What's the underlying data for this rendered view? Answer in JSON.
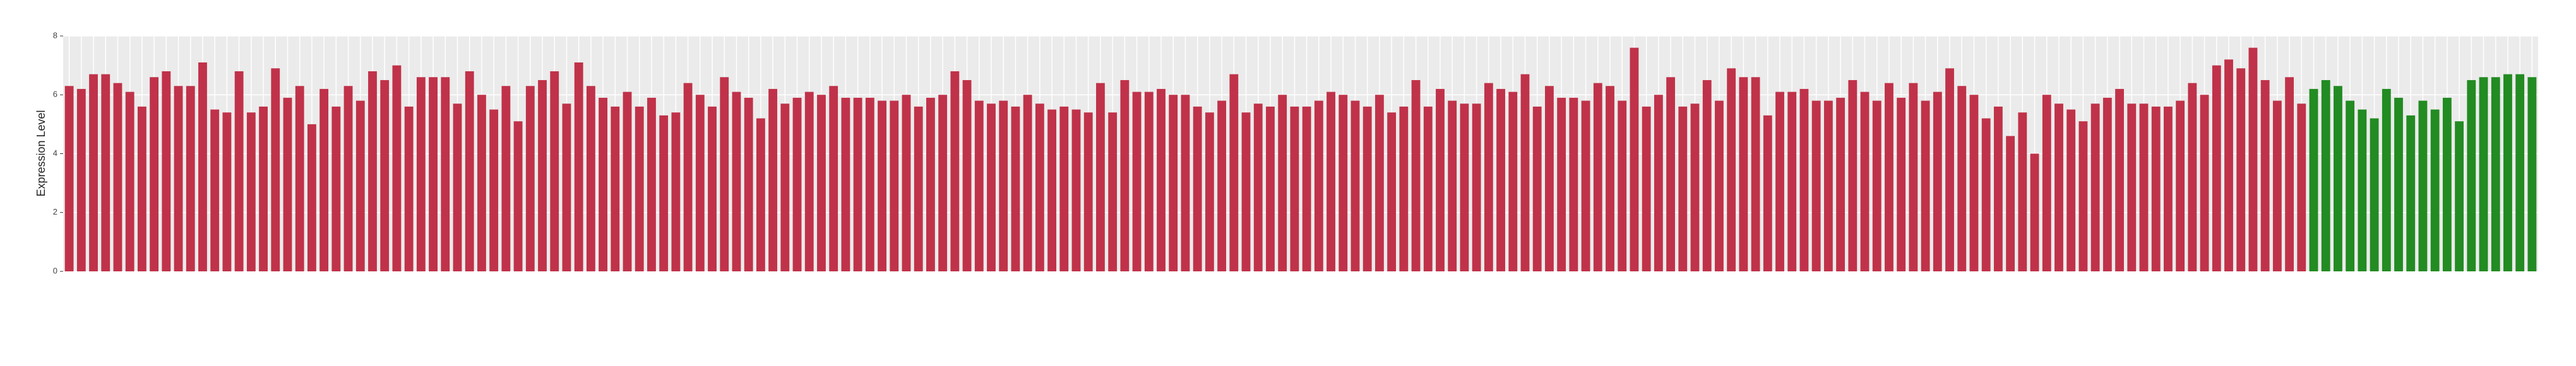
{
  "chart_data": {
    "type": "bar",
    "y_label": "Expression Level",
    "categories": [
      null,
      null,
      null,
      null,
      null,
      null,
      null,
      null,
      null,
      null,
      null,
      null,
      null,
      null,
      null,
      null,
      null,
      null,
      null,
      null,
      null,
      null,
      null,
      null,
      null,
      null,
      null,
      null,
      null,
      null,
      null,
      null,
      null,
      null,
      null,
      null,
      null,
      null,
      null,
      null,
      null,
      null,
      null,
      null,
      null,
      null,
      null,
      null,
      null,
      null,
      null,
      null,
      null,
      null,
      null,
      null,
      null,
      null,
      null,
      null,
      null,
      null,
      null,
      null,
      null,
      null,
      null,
      null,
      null,
      null,
      null,
      null,
      null,
      null,
      null,
      null,
      null,
      null,
      null,
      null,
      null,
      null,
      null,
      null,
      null,
      null,
      null,
      null,
      null,
      null,
      null,
      null,
      null,
      null,
      null,
      null,
      null,
      null,
      null,
      null,
      null,
      null,
      null,
      null,
      null,
      null,
      null,
      null,
      null,
      null,
      null,
      null,
      null,
      null,
      null,
      null,
      null,
      null,
      null,
      null,
      null,
      null,
      null,
      null,
      null,
      null,
      null,
      null,
      null,
      null,
      null,
      null,
      null,
      null,
      null,
      null,
      null,
      null,
      null,
      null,
      null,
      null,
      null,
      null,
      null,
      null,
      null,
      null,
      null,
      null,
      null,
      null,
      null,
      null,
      null,
      null,
      null,
      null,
      null,
      null,
      null,
      null,
      null,
      null,
      null,
      null,
      null,
      null,
      null,
      null,
      null,
      null,
      null,
      null,
      null,
      null,
      null,
      null,
      null,
      null,
      null,
      null,
      null,
      null,
      null,
      null,
      null,
      null,
      null,
      null,
      null,
      null,
      null,
      null,
      null,
      null,
      null,
      null,
      null,
      null,
      null,
      null,
      null,
      null
    ],
    "values": [
      6.3,
      6.2,
      6.7,
      6.7,
      6.4,
      6.1,
      5.6,
      6.6,
      6.8,
      6.3,
      6.3,
      7.1,
      5.5,
      5.4,
      6.8,
      5.4,
      5.6,
      6.9,
      5.9,
      6.3,
      5.0,
      6.2,
      5.6,
      6.3,
      5.8,
      6.8,
      6.5,
      7.0,
      5.6,
      6.6,
      6.6,
      6.6,
      5.7,
      6.8,
      6.0,
      5.5,
      6.3,
      5.1,
      6.3,
      6.5,
      6.8,
      5.7,
      7.1,
      6.3,
      5.9,
      5.6,
      6.1,
      5.6,
      5.9,
      5.3,
      5.4,
      6.4,
      6.0,
      5.6,
      6.6,
      6.1,
      5.9,
      5.2,
      6.2,
      5.7,
      5.9,
      6.1,
      6.0,
      6.3,
      5.9,
      5.9,
      5.9,
      5.8,
      5.8,
      6.0,
      5.6,
      5.9,
      6.0,
      6.8,
      6.5,
      5.8,
      5.7,
      5.8,
      5.6,
      6.0,
      5.7,
      5.5,
      5.6,
      5.5,
      5.4,
      6.4,
      5.4,
      6.5,
      6.1,
      6.1,
      6.2,
      6.0,
      6.0,
      5.6,
      5.4,
      5.8,
      6.7,
      5.4,
      5.7,
      5.6,
      6.0,
      5.6,
      5.6,
      5.8,
      6.1,
      6.0,
      5.8,
      5.6,
      6.0,
      5.4,
      5.6,
      6.5,
      5.6,
      6.2,
      5.8,
      5.7,
      5.7,
      6.4,
      6.2,
      6.1,
      6.7,
      5.6,
      6.3,
      5.9,
      5.9,
      5.8,
      6.4,
      6.3,
      5.8,
      7.6,
      5.6,
      6.0,
      6.6,
      5.6,
      5.7,
      6.5,
      5.8,
      6.9,
      6.6,
      6.6,
      5.3,
      6.1,
      6.1,
      6.2,
      5.8,
      5.8,
      5.9,
      6.5,
      6.1,
      5.8,
      6.4,
      5.9,
      6.4,
      5.8,
      6.1,
      6.9,
      6.3,
      6.0,
      5.2,
      5.6,
      4.6,
      5.4,
      4.0,
      6.0,
      5.7,
      5.5,
      5.1,
      5.7,
      5.9,
      6.2,
      5.7,
      5.7,
      5.6,
      5.6,
      5.8,
      6.4,
      6.0,
      7.0,
      7.2,
      6.9,
      7.6,
      6.5,
      5.8,
      6.6,
      5.7,
      6.2,
      6.5,
      6.3,
      5.8,
      5.5,
      5.2,
      6.2,
      5.9,
      5.3,
      5.8,
      5.5,
      5.9,
      5.1,
      6.5,
      6.6,
      6.6,
      6.7,
      6.7,
      6.6
    ],
    "colors": [
      "#c03249",
      "#c03249",
      "#c03249",
      "#c03249",
      "#c03249",
      "#c03249",
      "#c03249",
      "#c03249",
      "#c03249",
      "#c03249",
      "#c03249",
      "#c03249",
      "#c03249",
      "#c03249",
      "#c03249",
      "#c03249",
      "#c03249",
      "#c03249",
      "#c03249",
      "#c03249",
      "#c03249",
      "#c03249",
      "#c03249",
      "#c03249",
      "#c03249",
      "#c03249",
      "#c03249",
      "#c03249",
      "#c03249",
      "#c03249",
      "#c03249",
      "#c03249",
      "#c03249",
      "#c03249",
      "#c03249",
      "#c03249",
      "#c03249",
      "#c03249",
      "#c03249",
      "#c03249",
      "#c03249",
      "#c03249",
      "#c03249",
      "#c03249",
      "#c03249",
      "#c03249",
      "#c03249",
      "#c03249",
      "#c03249",
      "#c03249",
      "#c03249",
      "#c03249",
      "#c03249",
      "#c03249",
      "#c03249",
      "#c03249",
      "#c03249",
      "#c03249",
      "#c03249",
      "#c03249",
      "#c03249",
      "#c03249",
      "#c03249",
      "#c03249",
      "#c03249",
      "#c03249",
      "#c03249",
      "#c03249",
      "#c03249",
      "#c03249",
      "#c03249",
      "#c03249",
      "#c03249",
      "#c03249",
      "#c03249",
      "#c03249",
      "#c03249",
      "#c03249",
      "#c03249",
      "#c03249",
      "#c03249",
      "#c03249",
      "#c03249",
      "#c03249",
      "#c03249",
      "#c03249",
      "#c03249",
      "#c03249",
      "#c03249",
      "#c03249",
      "#c03249",
      "#c03249",
      "#c03249",
      "#c03249",
      "#c03249",
      "#c03249",
      "#c03249",
      "#c03249",
      "#c03249",
      "#c03249",
      "#c03249",
      "#c03249",
      "#c03249",
      "#c03249",
      "#c03249",
      "#c03249",
      "#c03249",
      "#c03249",
      "#c03249",
      "#c03249",
      "#c03249",
      "#c03249",
      "#c03249",
      "#c03249",
      "#c03249",
      "#c03249",
      "#c03249",
      "#c03249",
      "#c03249",
      "#c03249",
      "#c03249",
      "#c03249",
      "#c03249",
      "#c03249",
      "#c03249",
      "#c03249",
      "#c03249",
      "#c03249",
      "#c03249",
      "#c03249",
      "#c03249",
      "#c03249",
      "#c03249",
      "#c03249",
      "#c03249",
      "#c03249",
      "#c03249",
      "#c03249",
      "#c03249",
      "#c03249",
      "#c03249",
      "#c03249",
      "#c03249",
      "#c03249",
      "#c03249",
      "#c03249",
      "#c03249",
      "#c03249",
      "#c03249",
      "#c03249",
      "#c03249",
      "#c03249",
      "#c03249",
      "#c03249",
      "#c03249",
      "#c03249",
      "#c03249",
      "#c03249",
      "#c03249",
      "#c03249",
      "#c03249",
      "#c03249",
      "#c03249",
      "#c03249",
      "#c03249",
      "#c03249",
      "#c03249",
      "#c03249",
      "#c03249",
      "#c03249",
      "#c03249",
      "#c03249",
      "#c03249",
      "#c03249",
      "#c03249",
      "#c03249",
      "#c03249",
      "#c03249",
      "#c03249",
      "#c03249",
      "#c03249",
      "#c03249",
      "#c03249",
      "#c03249",
      "#c03249",
      "#228b22",
      "#228b22",
      "#228b22",
      "#228b22",
      "#228b22",
      "#228b22",
      "#228b22",
      "#228b22",
      "#228b22",
      "#228b22",
      "#228b22",
      "#228b22",
      "#228b22",
      "#228b22",
      "#228b22",
      "#228b22",
      "#228b22",
      "#228b22",
      "#228b22",
      "#228b22",
      "#228b22"
    ],
    "ylim": [
      0,
      8
    ],
    "yticks": [
      0,
      2,
      4,
      6,
      8
    ],
    "grid": true
  }
}
